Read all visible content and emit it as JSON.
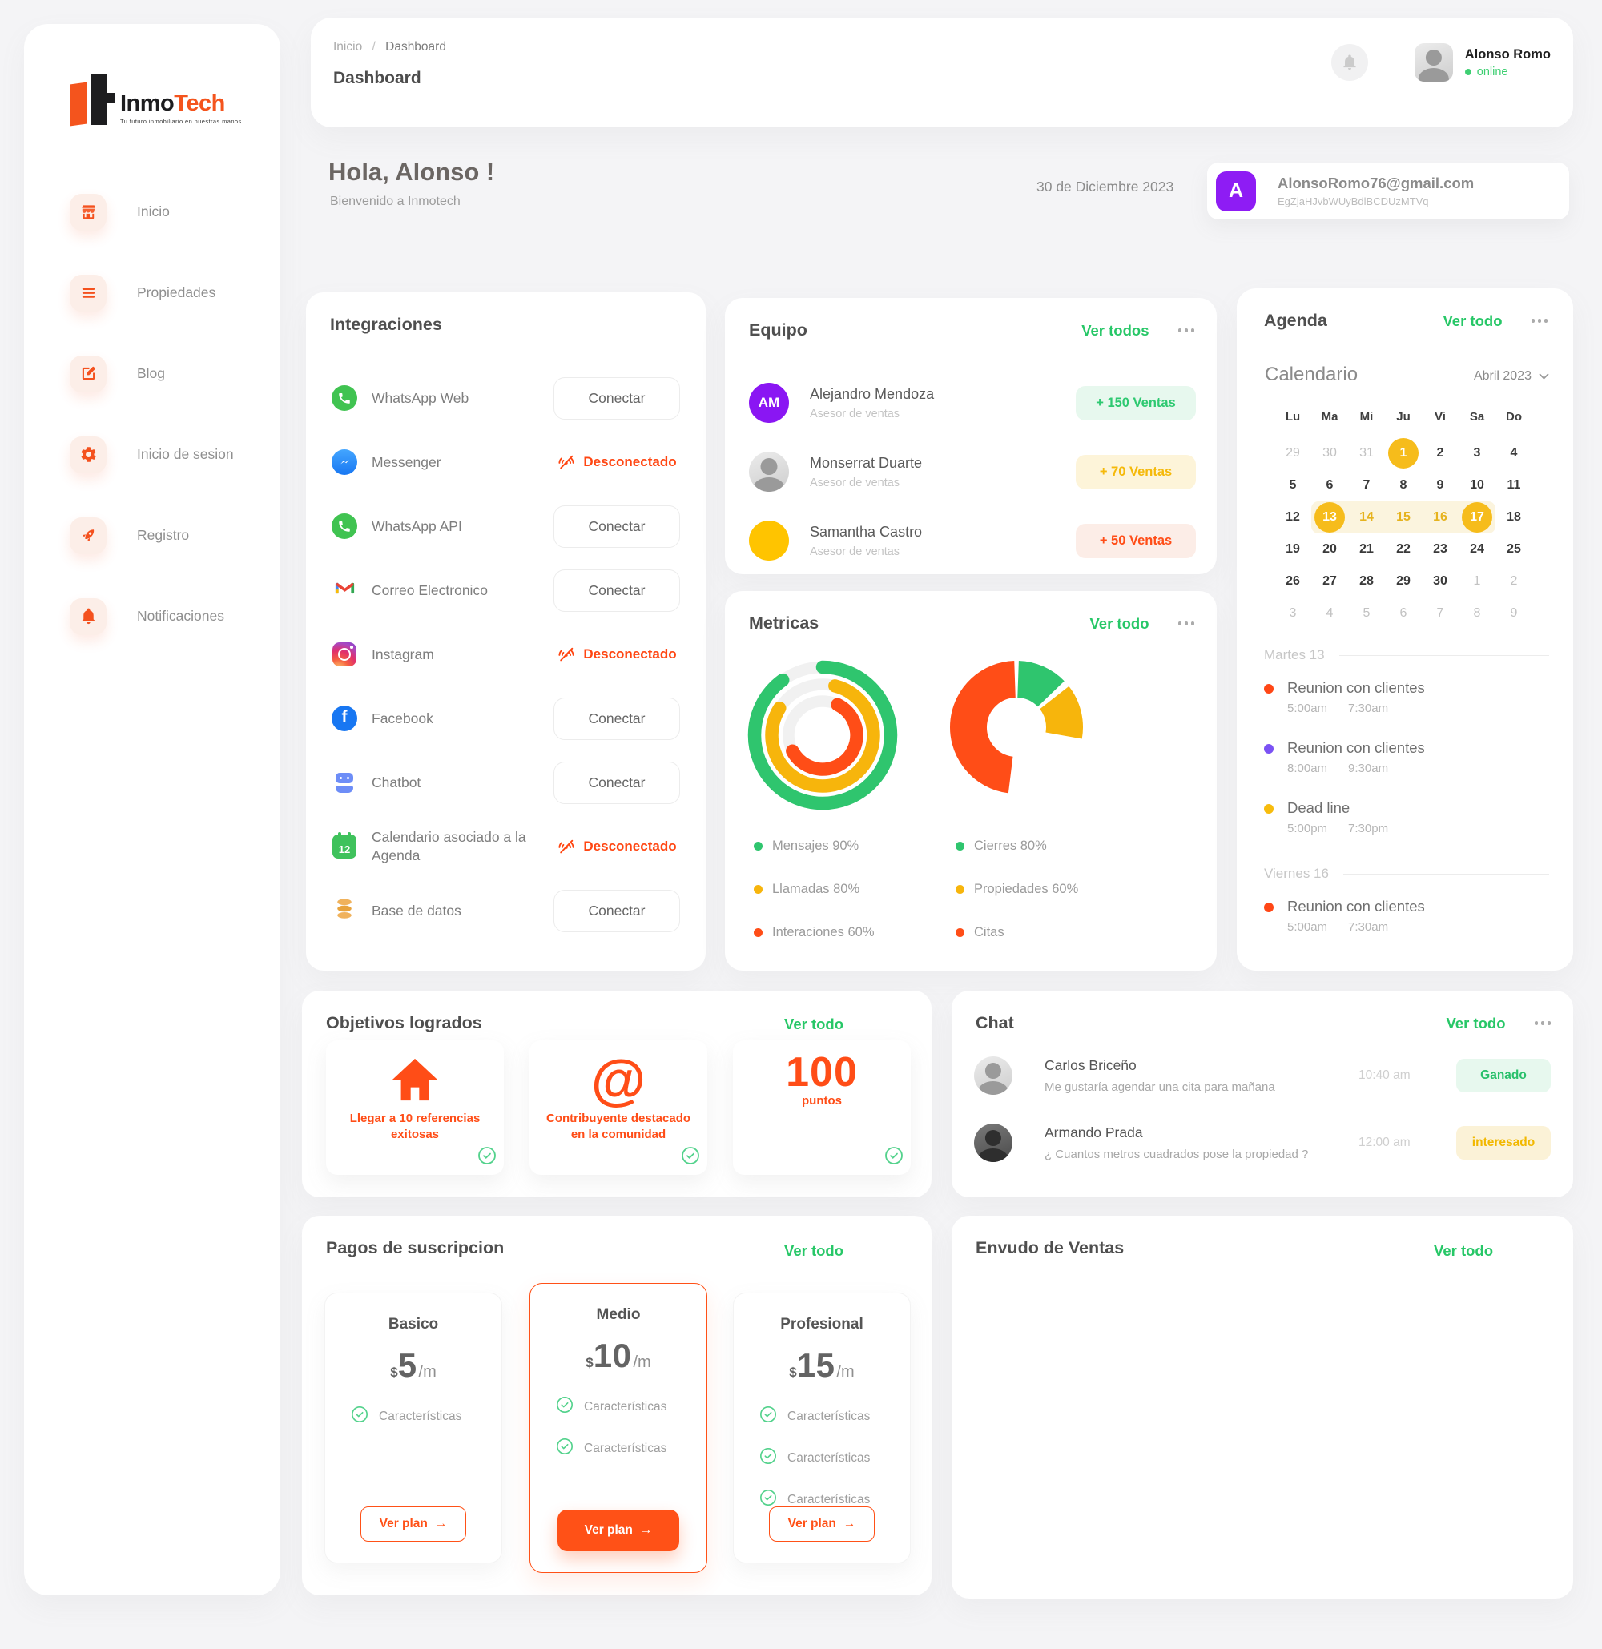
{
  "theme": {
    "accent": "#F4511E",
    "accent_bright": "#FF4D17",
    "green": "#27C767",
    "yellow": "#F6BC1B",
    "purple": "#8E1CF4"
  },
  "sidebar": {
    "logo": {
      "text_dark": "Inmo",
      "text_accent": "Tech",
      "tagline": "Tu futuro inmobiliario en nuestras manos"
    },
    "items": [
      {
        "label": "Inicio",
        "icon": "store"
      },
      {
        "label": "Propiedades",
        "icon": "menu"
      },
      {
        "label": "Blog",
        "icon": "edit"
      },
      {
        "label": "Inicio de sesion",
        "icon": "gear"
      },
      {
        "label": "Registro",
        "icon": "rocket"
      },
      {
        "label": "Notificaciones",
        "icon": "bell"
      }
    ]
  },
  "header": {
    "breadcrumb": {
      "home": "Inicio",
      "sep": "/",
      "current": "Dashboard"
    },
    "title": "Dashboard",
    "user": {
      "name": "Alonso Romo",
      "status": "online"
    }
  },
  "greeting": {
    "title": "Hola, Alonso !",
    "subtitle": "Bienvenido a Inmotech",
    "date": "30 de Diciembre 2023"
  },
  "account": {
    "initial": "A",
    "email": "AlonsoRomo76@gmail.com",
    "token": "EgZjaHJvbWUyBdlBCDUzMTVq"
  },
  "integrations": {
    "title": "Integraciones",
    "connect_label": "Conectar",
    "disconnected_label": "Desconectado",
    "items": [
      {
        "name": "WhatsApp Web",
        "icon": "whatsapp",
        "status": "connect"
      },
      {
        "name": "Messenger",
        "icon": "messenger",
        "status": "disconnected"
      },
      {
        "name": "WhatsApp API",
        "icon": "whatsapp",
        "status": "connect"
      },
      {
        "name": "Correo Electronico",
        "icon": "gmail",
        "status": "connect"
      },
      {
        "name": "Instagram",
        "icon": "instagram",
        "status": "disconnected"
      },
      {
        "name": "Facebook",
        "icon": "facebook",
        "status": "connect"
      },
      {
        "name": "Chatbot",
        "icon": "chatbot",
        "status": "connect"
      },
      {
        "name": "Calendario asociado a la Agenda",
        "icon": "calendar",
        "status": "disconnected"
      },
      {
        "name": "Base de datos",
        "icon": "database",
        "status": "connect"
      }
    ]
  },
  "team": {
    "title": "Equipo",
    "view_all": "Ver todos",
    "members": [
      {
        "name": "Alejandro Mendoza",
        "role": "Asesor de ventas",
        "badge": "+ 150 Ventas",
        "badge_bg": "#E7F8EE",
        "badge_fg": "#2EC971",
        "avatar_type": "initials",
        "avatar_text": "AM",
        "avatar_bg": "#8A16F3"
      },
      {
        "name": "Monserrat Duarte",
        "role": "Asesor de ventas",
        "badge": "+ 70 Ventas",
        "badge_bg": "#FDF4D9",
        "badge_fg": "#F5B90A",
        "avatar_type": "photo",
        "avatar_text": "",
        "avatar_bg": ""
      },
      {
        "name": "Samantha Castro",
        "role": "Asesor de ventas",
        "badge": "+ 50 Ventas",
        "badge_bg": "#FCEDE7",
        "badge_fg": "#FF4D17",
        "avatar_type": "plain",
        "avatar_text": "",
        "avatar_bg": "#FFC400"
      }
    ]
  },
  "metrics": {
    "title": "Metricas",
    "view_all": "Ver todo",
    "legend_left": [
      {
        "label": "Mensajes",
        "value": "90%",
        "color": "#2FC56E"
      },
      {
        "label": "Llamadas",
        "value": "80%",
        "color": "#F7B50C"
      },
      {
        "label": "Interaciones",
        "value": "60%",
        "color": "#FF4D17"
      }
    ],
    "legend_right": [
      {
        "label": "Cierres",
        "value": "80%",
        "color": "#2FC56E"
      },
      {
        "label": "Propiedades",
        "value": "60%",
        "color": "#F7B50C"
      },
      {
        "label": "Citas",
        "value": "",
        "color": "#FF4D17"
      }
    ]
  },
  "chart_data": [
    {
      "type": "donut",
      "style": "concentric-rings",
      "title": "Metricas - anillos",
      "series": [
        {
          "name": "Mensajes",
          "value": 90,
          "color": "#2FC56E"
        },
        {
          "name": "Llamadas",
          "value": 80,
          "color": "#F7B50C"
        },
        {
          "name": "Interaciones",
          "value": 60,
          "color": "#FF4D17"
        }
      ],
      "track_color": "#F1F1F1",
      "start_offsets_deg": [
        0,
        14,
        26
      ]
    },
    {
      "type": "donut",
      "style": "segments",
      "title": "Metricas - dona",
      "segments": [
        {
          "name": "Cierres",
          "start_deg": 2,
          "end_deg": 46,
          "color": "#2FC56E"
        },
        {
          "name": "Propiedades",
          "start_deg": 52,
          "end_deg": 100,
          "color": "#F7B50C"
        },
        {
          "name": "Citas",
          "start_deg": 187,
          "end_deg": 358,
          "color": "#FF4D17"
        }
      ]
    }
  ],
  "agenda": {
    "title": "Agenda",
    "view_all": "Ver todo",
    "calendar": {
      "title": "Calendario",
      "month": "Abril 2023",
      "weekdays": [
        "Lu",
        "Ma",
        "Mi",
        "Ju",
        "Vi",
        "Sa",
        "Do"
      ],
      "cells": [
        {
          "d": "29",
          "s": "out"
        },
        {
          "d": "30",
          "s": "out"
        },
        {
          "d": "31",
          "s": "out"
        },
        {
          "d": "1",
          "s": "sel"
        },
        {
          "d": "2",
          "s": ""
        },
        {
          "d": "3",
          "s": ""
        },
        {
          "d": "4",
          "s": ""
        },
        {
          "d": "5",
          "s": ""
        },
        {
          "d": "6",
          "s": ""
        },
        {
          "d": "7",
          "s": ""
        },
        {
          "d": "8",
          "s": ""
        },
        {
          "d": "9",
          "s": ""
        },
        {
          "d": "10",
          "s": ""
        },
        {
          "d": "11",
          "s": ""
        },
        {
          "d": "12",
          "s": ""
        },
        {
          "d": "13",
          "s": "sel range range-start"
        },
        {
          "d": "14",
          "s": "range range-mid"
        },
        {
          "d": "15",
          "s": "range range-mid"
        },
        {
          "d": "16",
          "s": "range range-mid"
        },
        {
          "d": "17",
          "s": "sel range range-end"
        },
        {
          "d": "18",
          "s": ""
        },
        {
          "d": "19",
          "s": ""
        },
        {
          "d": "20",
          "s": ""
        },
        {
          "d": "21",
          "s": ""
        },
        {
          "d": "22",
          "s": ""
        },
        {
          "d": "23",
          "s": ""
        },
        {
          "d": "24",
          "s": ""
        },
        {
          "d": "25",
          "s": ""
        },
        {
          "d": "26",
          "s": ""
        },
        {
          "d": "27",
          "s": ""
        },
        {
          "d": "28",
          "s": ""
        },
        {
          "d": "29",
          "s": ""
        },
        {
          "d": "30",
          "s": ""
        },
        {
          "d": "1",
          "s": "out"
        },
        {
          "d": "2",
          "s": "out"
        },
        {
          "d": "3",
          "s": "out"
        },
        {
          "d": "4",
          "s": "out"
        },
        {
          "d": "5",
          "s": "out"
        },
        {
          "d": "6",
          "s": "out"
        },
        {
          "d": "7",
          "s": "out"
        },
        {
          "d": "8",
          "s": "out"
        },
        {
          "d": "9",
          "s": "out"
        }
      ]
    },
    "days": [
      {
        "label": "Martes 13",
        "events": [
          {
            "title": "Reunion con clientes",
            "start": "5:00am",
            "end": "7:30am",
            "color": "#FF4716"
          },
          {
            "title": "Reunion con clientes",
            "start": "8:00am",
            "end": "9:30am",
            "color": "#7B52F4"
          },
          {
            "title": "Dead line",
            "start": "5:00pm",
            "end": "7:30pm",
            "color": "#F7BC0D"
          }
        ]
      },
      {
        "label": "Viernes 16",
        "events": [
          {
            "title": "Reunion con clientes",
            "start": "5:00am",
            "end": "7:30am",
            "color": "#FF4716"
          }
        ]
      }
    ]
  },
  "goals": {
    "title": "Objetivos logrados",
    "view_all": "Ver todo",
    "items": [
      {
        "icon": "house",
        "big_text": "",
        "label": "Llegar a 10 referencias exitosas"
      },
      {
        "icon": "at",
        "big_text": "",
        "label": "Contribuyente destacado en la comunidad"
      },
      {
        "icon": "points",
        "big_text": "100",
        "label": "puntos"
      }
    ]
  },
  "chat": {
    "title": "Chat",
    "view_all": "Ver todo",
    "messages": [
      {
        "name": "Carlos Briceño",
        "text": "Me gustaría agendar una cita para mañana",
        "time": "10:40 am",
        "badge": "Ganado",
        "badge_bg": "#E7F8EE",
        "badge_fg": "#29C06B",
        "avatar_type": "photo"
      },
      {
        "name": "Armando Prada",
        "text": "¿ Cuantos metros cuadrados pose la propiedad ?",
        "time": "12:00 am",
        "badge": "interesado",
        "badge_bg": "#FBF2D7",
        "badge_fg": "#F2B800",
        "avatar_type": "photo-dark"
      }
    ]
  },
  "plans": {
    "title": "Pagos de suscripcion",
    "view_all": "Ver todo",
    "cta": "Ver plan",
    "arrow": "→",
    "feature_label": "Características",
    "items": [
      {
        "name": "Basico",
        "currency": "$",
        "price": "5",
        "period": "/m",
        "features_count": 1,
        "highlight": false
      },
      {
        "name": "Medio",
        "currency": "$",
        "price": "10",
        "period": "/m",
        "features_count": 2,
        "highlight": true
      },
      {
        "name": "Profesional",
        "currency": "$",
        "price": "15",
        "period": "/m",
        "features_count": 3,
        "highlight": false
      }
    ]
  },
  "funnel": {
    "title": "Envudo de Ventas",
    "view_all": "Ver todo"
  }
}
